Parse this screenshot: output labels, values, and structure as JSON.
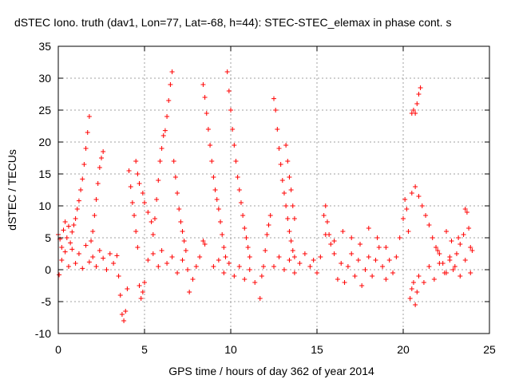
{
  "chart_data": {
    "type": "scatter",
    "title": "dSTEC Iono. truth (dav1, Lon=77, Lat=-68, h=44): STEC-STEC_elemax in phase cont. s",
    "xlabel": "GPS time / hours of day 362 of year 2014",
    "ylabel": "dSTEC  / TECUs",
    "xlim": [
      0,
      25
    ],
    "ylim": [
      -10,
      35
    ],
    "xticks": [
      0,
      5,
      10,
      15,
      20,
      25
    ],
    "yticks": [
      -10,
      -5,
      0,
      5,
      10,
      15,
      20,
      25,
      30,
      35
    ],
    "grid": true,
    "marker": "+",
    "colors": {
      "series": "#ff0000",
      "grid": "#a0a0a0",
      "axes": "#000000"
    },
    "series": [
      {
        "points": [
          [
            0.0,
            5.5
          ],
          [
            0.1,
            4.8
          ],
          [
            0.2,
            3.5
          ],
          [
            0.3,
            6.2
          ],
          [
            0.4,
            7.5
          ],
          [
            0.5,
            5.0
          ],
          [
            0.6,
            6.8
          ],
          [
            0.7,
            4.2
          ],
          [
            0.8,
            5.9
          ],
          [
            0.9,
            7.0
          ],
          [
            1.0,
            8.0
          ],
          [
            1.1,
            9.5
          ],
          [
            1.2,
            10.8
          ],
          [
            1.3,
            12.5
          ],
          [
            1.4,
            14.2
          ],
          [
            1.5,
            16.5
          ],
          [
            1.6,
            19.0
          ],
          [
            1.7,
            21.5
          ],
          [
            1.8,
            24.0
          ],
          [
            1.9,
            4.5
          ],
          [
            2.0,
            6.0
          ],
          [
            2.1,
            8.5
          ],
          [
            2.2,
            11.0
          ],
          [
            2.3,
            13.5
          ],
          [
            2.4,
            16.0
          ],
          [
            2.5,
            17.5
          ],
          [
            2.6,
            18.5
          ],
          [
            0.05,
            -0.8
          ],
          [
            0.2,
            1.5
          ],
          [
            0.4,
            2.8
          ],
          [
            0.6,
            0.5
          ],
          [
            0.8,
            3.2
          ],
          [
            1.0,
            1.0
          ],
          [
            1.2,
            2.5
          ],
          [
            1.4,
            0.2
          ],
          [
            1.6,
            3.8
          ],
          [
            1.8,
            1.2
          ],
          [
            2.0,
            2.0
          ],
          [
            2.2,
            0.5
          ],
          [
            2.4,
            3.0
          ],
          [
            2.6,
            1.8
          ],
          [
            2.8,
            0.0
          ],
          [
            3.0,
            2.5
          ],
          [
            3.2,
            1.0
          ],
          [
            3.4,
            2.2
          ],
          [
            3.5,
            -1.0
          ],
          [
            3.6,
            -4.0
          ],
          [
            3.7,
            -7.0
          ],
          [
            3.8,
            -8.0
          ],
          [
            3.9,
            -6.5
          ],
          [
            4.0,
            -3.0
          ],
          [
            4.1,
            15.5
          ],
          [
            4.2,
            13.0
          ],
          [
            4.3,
            10.5
          ],
          [
            4.4,
            8.5
          ],
          [
            4.5,
            6.0
          ],
          [
            4.6,
            3.5
          ],
          [
            4.7,
            -2.5
          ],
          [
            4.8,
            -4.5
          ],
          [
            4.9,
            -3.5
          ],
          [
            5.0,
            -2.0
          ],
          [
            4.5,
            17.0
          ],
          [
            4.6,
            15.0
          ],
          [
            4.7,
            13.5
          ],
          [
            4.9,
            12.0
          ],
          [
            5.0,
            10.5
          ],
          [
            5.2,
            9.0
          ],
          [
            5.4,
            7.5
          ],
          [
            5.5,
            5.5
          ],
          [
            5.6,
            8.0
          ],
          [
            5.7,
            11.0
          ],
          [
            5.8,
            14.0
          ],
          [
            5.9,
            17.0
          ],
          [
            6.0,
            19.0
          ],
          [
            6.1,
            21.0
          ],
          [
            6.2,
            21.8
          ],
          [
            6.3,
            24.0
          ],
          [
            6.4,
            26.5
          ],
          [
            6.5,
            29.0
          ],
          [
            6.6,
            31.0
          ],
          [
            6.7,
            17.0
          ],
          [
            6.8,
            14.5
          ],
          [
            6.9,
            12.0
          ],
          [
            7.0,
            9.5
          ],
          [
            7.1,
            7.5
          ],
          [
            7.2,
            6.0
          ],
          [
            7.3,
            4.5
          ],
          [
            7.4,
            3.0
          ],
          [
            5.2,
            1.5
          ],
          [
            5.5,
            2.5
          ],
          [
            5.8,
            0.5
          ],
          [
            6.0,
            3.0
          ],
          [
            6.3,
            1.0
          ],
          [
            6.6,
            2.0
          ],
          [
            6.9,
            -0.5
          ],
          [
            7.2,
            1.5
          ],
          [
            7.5,
            0.0
          ],
          [
            7.6,
            -3.5
          ],
          [
            7.8,
            -1.5
          ],
          [
            8.0,
            0.5
          ],
          [
            8.2,
            2.0
          ],
          [
            8.4,
            4.5
          ],
          [
            8.5,
            4.0
          ],
          [
            8.4,
            29.0
          ],
          [
            8.5,
            27.0
          ],
          [
            8.6,
            24.5
          ],
          [
            8.7,
            22.0
          ],
          [
            8.8,
            19.5
          ],
          [
            8.9,
            17.0
          ],
          [
            9.0,
            14.5
          ],
          [
            9.1,
            12.5
          ],
          [
            9.2,
            11.0
          ],
          [
            9.3,
            9.5
          ],
          [
            9.4,
            7.5
          ],
          [
            9.5,
            5.5
          ],
          [
            9.6,
            3.5
          ],
          [
            9.7,
            2.0
          ],
          [
            9.8,
            31.0
          ],
          [
            9.9,
            28.0
          ],
          [
            10.0,
            25.0
          ],
          [
            10.1,
            22.0
          ],
          [
            10.2,
            19.5
          ],
          [
            10.3,
            17.0
          ],
          [
            10.4,
            14.5
          ],
          [
            10.5,
            12.5
          ],
          [
            10.6,
            10.5
          ],
          [
            10.7,
            8.5
          ],
          [
            10.8,
            6.5
          ],
          [
            10.9,
            5.0
          ],
          [
            11.0,
            3.5
          ],
          [
            11.1,
            2.0
          ],
          [
            9.0,
            0.5
          ],
          [
            9.3,
            1.5
          ],
          [
            9.6,
            -0.5
          ],
          [
            9.9,
            1.0
          ],
          [
            10.2,
            -1.0
          ],
          [
            10.5,
            0.5
          ],
          [
            10.8,
            -1.5
          ],
          [
            11.1,
            0.0
          ],
          [
            11.4,
            -2.0
          ],
          [
            11.7,
            -4.5
          ],
          [
            11.8,
            -1.0
          ],
          [
            11.9,
            0.5
          ],
          [
            12.0,
            3.0
          ],
          [
            12.1,
            5.5
          ],
          [
            12.2,
            7.0
          ],
          [
            12.3,
            8.5
          ],
          [
            12.5,
            26.8
          ],
          [
            12.6,
            25.0
          ],
          [
            12.7,
            22.0
          ],
          [
            12.8,
            19.0
          ],
          [
            12.9,
            16.5
          ],
          [
            13.0,
            14.0
          ],
          [
            13.1,
            12.0
          ],
          [
            13.2,
            10.0
          ],
          [
            13.3,
            8.0
          ],
          [
            13.4,
            6.0
          ],
          [
            13.5,
            4.5
          ],
          [
            13.6,
            3.0
          ],
          [
            13.7,
            2.0
          ],
          [
            13.2,
            19.5
          ],
          [
            13.3,
            17.0
          ],
          [
            13.4,
            14.5
          ],
          [
            13.5,
            12.5
          ],
          [
            13.6,
            10.0
          ],
          [
            13.7,
            8.0
          ],
          [
            12.5,
            0.5
          ],
          [
            12.8,
            2.0
          ],
          [
            13.1,
            0.0
          ],
          [
            13.4,
            1.5
          ],
          [
            13.7,
            -0.5
          ],
          [
            14.0,
            1.0
          ],
          [
            14.3,
            2.5
          ],
          [
            14.6,
            0.5
          ],
          [
            14.8,
            1.5
          ],
          [
            15.0,
            -0.5
          ],
          [
            15.2,
            2.0
          ],
          [
            15.4,
            8.5
          ],
          [
            15.5,
            10.0
          ],
          [
            15.6,
            7.5
          ],
          [
            15.7,
            5.5
          ],
          [
            15.8,
            4.0
          ],
          [
            16.0,
            2.5
          ],
          [
            16.2,
            -1.5
          ],
          [
            16.4,
            1.0
          ],
          [
            16.6,
            -2.0
          ],
          [
            16.8,
            0.5
          ],
          [
            17.0,
            2.5
          ],
          [
            17.2,
            -1.0
          ],
          [
            17.4,
            1.5
          ],
          [
            17.6,
            -2.5
          ],
          [
            17.8,
            0.0
          ],
          [
            18.0,
            2.0
          ],
          [
            18.2,
            -1.0
          ],
          [
            18.4,
            1.5
          ],
          [
            18.6,
            3.5
          ],
          [
            18.8,
            0.5
          ],
          [
            19.0,
            -1.5
          ],
          [
            19.2,
            1.5
          ],
          [
            19.4,
            -0.5
          ],
          [
            19.6,
            2.0
          ],
          [
            19.8,
            5.0
          ],
          [
            20.0,
            8.0
          ],
          [
            20.1,
            11.0
          ],
          [
            20.2,
            9.5
          ],
          [
            20.3,
            6.0
          ],
          [
            20.4,
            -4.5
          ],
          [
            20.5,
            -3.0
          ],
          [
            20.6,
            -2.0
          ],
          [
            20.7,
            -5.5
          ],
          [
            20.8,
            -3.5
          ],
          [
            20.9,
            -1.0
          ],
          [
            20.5,
            24.5
          ],
          [
            20.6,
            25.0
          ],
          [
            20.7,
            24.5
          ],
          [
            20.8,
            26.0
          ],
          [
            20.9,
            27.5
          ],
          [
            21.0,
            28.5
          ],
          [
            20.5,
            12.0
          ],
          [
            20.7,
            13.0
          ],
          [
            20.9,
            11.5
          ],
          [
            21.1,
            10.0
          ],
          [
            21.3,
            8.5
          ],
          [
            21.5,
            7.0
          ],
          [
            21.7,
            5.0
          ],
          [
            21.9,
            3.5
          ],
          [
            22.1,
            2.5
          ],
          [
            22.3,
            1.0
          ],
          [
            22.5,
            -0.5
          ],
          [
            22.7,
            1.5
          ],
          [
            22.9,
            0.0
          ],
          [
            23.1,
            2.5
          ],
          [
            23.3,
            4.0
          ],
          [
            23.5,
            5.5
          ],
          [
            23.6,
            9.5
          ],
          [
            23.7,
            9.0
          ],
          [
            23.8,
            6.5
          ],
          [
            23.9,
            3.5
          ],
          [
            24.0,
            3.0
          ],
          [
            21.2,
            -2.0
          ],
          [
            21.5,
            0.5
          ],
          [
            21.8,
            -1.5
          ],
          [
            22.1,
            1.0
          ],
          [
            22.4,
            -0.5
          ],
          [
            22.7,
            2.0
          ],
          [
            23.0,
            0.5
          ],
          [
            23.3,
            -1.0
          ],
          [
            23.6,
            1.5
          ],
          [
            23.9,
            -0.5
          ],
          [
            22.0,
            3.0
          ],
          [
            22.5,
            6.0
          ],
          [
            22.8,
            4.5
          ],
          [
            23.2,
            5.0
          ],
          [
            15.5,
            5.5
          ],
          [
            16.0,
            4.5
          ],
          [
            16.5,
            6.0
          ],
          [
            17.0,
            5.0
          ],
          [
            17.5,
            4.0
          ],
          [
            18.0,
            6.5
          ],
          [
            18.5,
            5.0
          ],
          [
            19.0,
            3.5
          ]
        ]
      }
    ]
  }
}
